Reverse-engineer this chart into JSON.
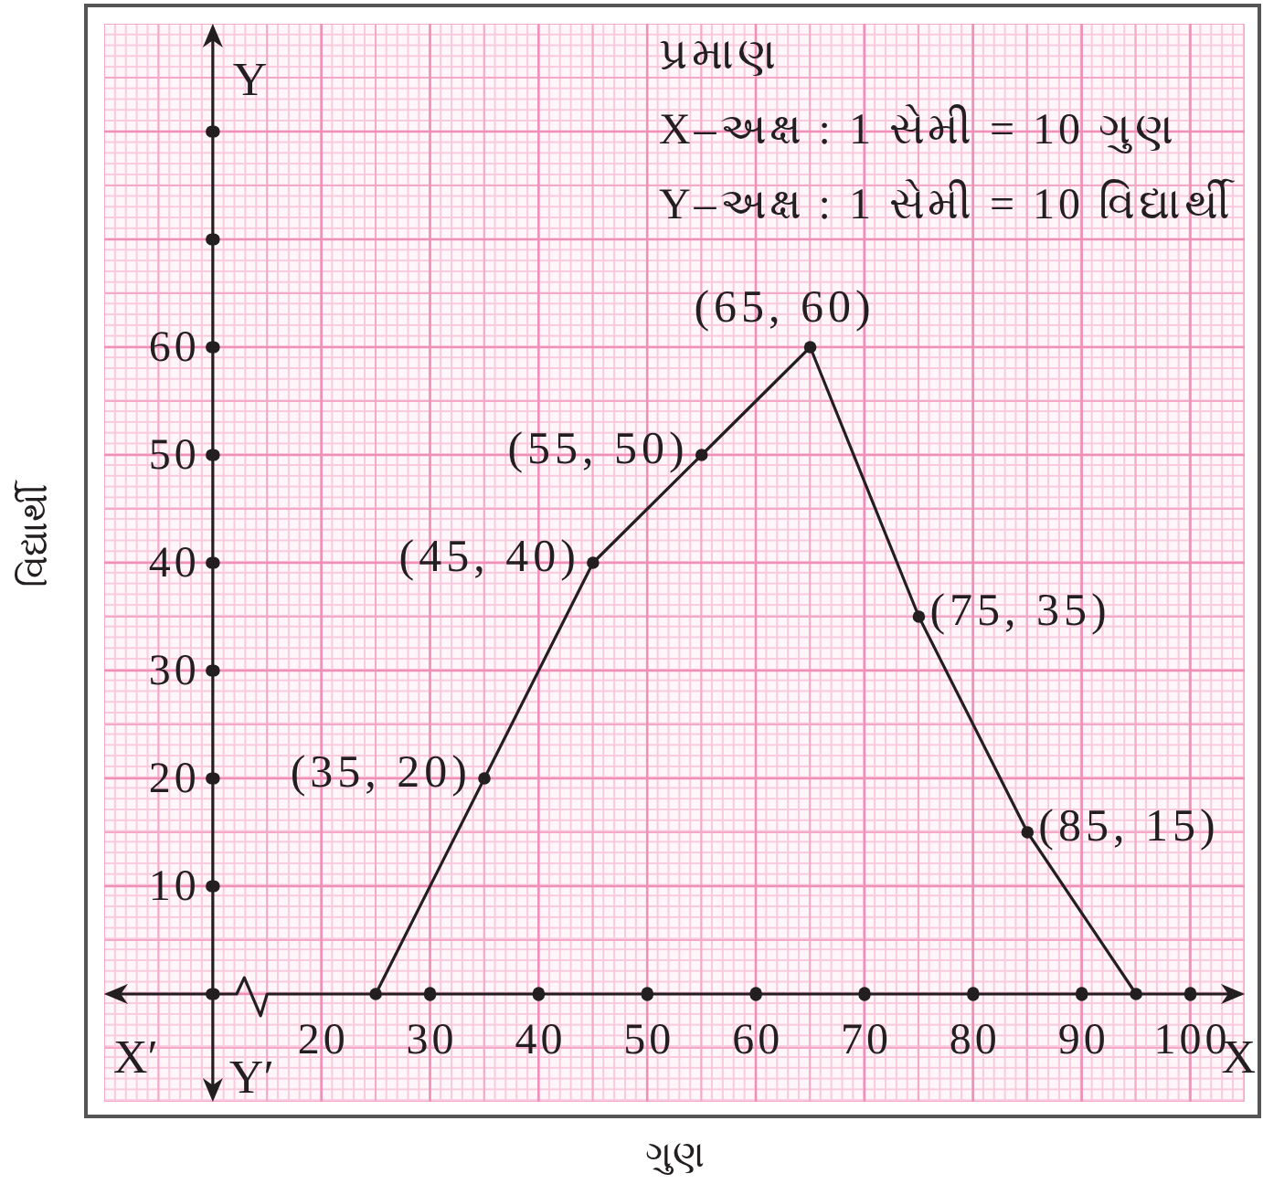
{
  "chart_data": {
    "type": "line",
    "xlabel": "ગુણ",
    "ylabel": "વિદ્યાર્થી",
    "x": [
      25,
      35,
      45,
      55,
      65,
      75,
      85,
      95
    ],
    "values": [
      0,
      20,
      40,
      50,
      60,
      35,
      15,
      0
    ],
    "color": "#231f20",
    "value_labels": [
      null,
      "(35, 20)",
      "(45, 40)",
      "(55, 50)",
      "(65, 60)",
      "(75, 35)",
      "(85, 15)",
      null
    ],
    "xlim": [
      0,
      105
    ],
    "xticks": [
      20,
      30,
      40,
      50,
      60,
      70,
      80,
      90,
      100
    ],
    "ylim": [
      -10,
      90
    ],
    "yticks": [
      {
        "value": 0,
        "label": null
      },
      10,
      20,
      30,
      40,
      50,
      60,
      {
        "value": 70,
        "label": null
      },
      {
        "value": 80,
        "label": null
      }
    ],
    "grid": true,
    "marker": "circle",
    "annotations": [
      "પ્રમાણ",
      "X–અક્ષ : 1 સેમી = 10 ગુણ",
      "Y–અક્ષ : 1 સેમી = 10 વિદ્યાર્થી",
      "X′",
      "X",
      "Y",
      "Y′"
    ]
  }
}
